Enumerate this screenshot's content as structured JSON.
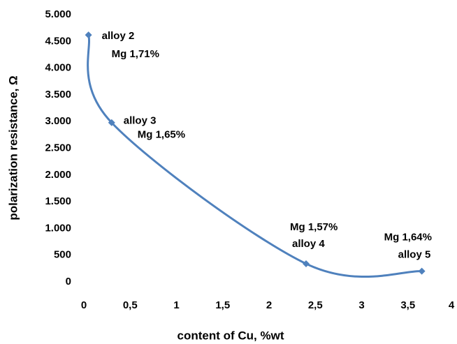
{
  "chart_data": {
    "type": "line",
    "x_label": "content of Cu, %wt",
    "y_label": "polarization resistance, Ω",
    "x": [
      0.05,
      0.3,
      2.4,
      3.65
    ],
    "series": [
      {
        "color": "#4f81bd",
        "values": [
          4620,
          2980,
          340,
          200
        ]
      }
    ],
    "point_labels": [
      [
        "alloy 2",
        "Mg 1,71%"
      ],
      [
        "alloy 3",
        "Mg 1,65%"
      ],
      [
        "Mg 1,57%",
        "alloy 4"
      ],
      [
        "Mg 1,64%",
        "alloy 5"
      ]
    ],
    "xlim": [
      0,
      4
    ],
    "xticks": [
      0,
      {
        "value": 0.5,
        "label": "0,5"
      },
      1,
      {
        "value": 1.5,
        "label": "1,5"
      },
      2,
      {
        "value": 2.5,
        "label": "2,5"
      },
      3,
      {
        "value": 3.5,
        "label": "3,5"
      },
      4
    ],
    "ylim": [
      0,
      5000
    ],
    "yticks": [
      0,
      500,
      {
        "value": 1000,
        "label": "1.000"
      },
      {
        "value": 1500,
        "label": "1.500"
      },
      {
        "value": 2000,
        "label": "2.000"
      },
      {
        "value": 2500,
        "label": "2.500"
      },
      {
        "value": 3000,
        "label": "3.000"
      },
      {
        "value": 3500,
        "label": "3.500"
      },
      {
        "value": 4000,
        "label": "4.000"
      },
      {
        "value": 4500,
        "label": "4.500"
      },
      {
        "value": 5000,
        "label": "5.000"
      }
    ],
    "grid": false
  }
}
